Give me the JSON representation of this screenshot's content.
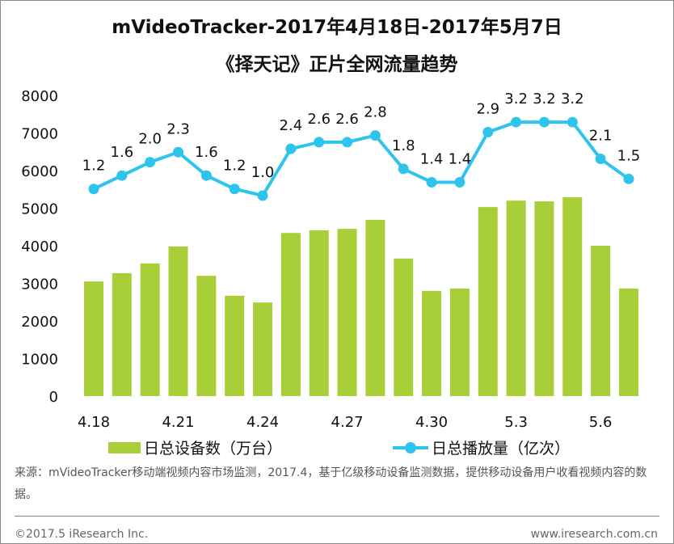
{
  "title_line1": "mVideoTracker-2017年4月18日-2017年5月7日",
  "title_line2": "《择天记》正片全网流量趋势",
  "chart_data": {
    "type": "bar+line",
    "categories": [
      "4.18",
      "",
      "",
      "4.21",
      "",
      "",
      "4.24",
      "",
      "",
      "4.27",
      "",
      "",
      "4.30",
      "",
      "",
      "5.3",
      "",
      "",
      "5.6",
      ""
    ],
    "y_axis": {
      "range": [
        0,
        8000
      ],
      "ticks": [
        0,
        1000,
        2000,
        3000,
        4000,
        5000,
        6000,
        7000,
        8000
      ]
    },
    "secondary_axis_hidden": {
      "range": [
        -5,
        4
      ]
    },
    "grid": false,
    "legend_position": "bottom",
    "series": [
      {
        "name": "日总设备数（万台）",
        "type": "bar",
        "axis": "left",
        "color": "#A9CF38",
        "values": [
          3050,
          3270,
          3530,
          3980,
          3200,
          2670,
          2490,
          4340,
          4410,
          4450,
          4690,
          3660,
          2800,
          2860,
          5030,
          5200,
          5180,
          5290,
          4000,
          2860
        ]
      },
      {
        "name": "日总播放量（亿次）",
        "type": "line",
        "axis": "secondary",
        "color": "#2EC4EE",
        "values": [
          1.2,
          1.6,
          2.0,
          2.3,
          1.6,
          1.2,
          1.0,
          2.4,
          2.6,
          2.6,
          2.8,
          1.8,
          1.4,
          1.4,
          2.9,
          3.2,
          3.2,
          3.2,
          2.1,
          1.5
        ],
        "labels": [
          "1.2",
          "1.6",
          "2.0",
          "2.3",
          "1.6",
          "1.2",
          "1.0",
          "2.4",
          "2.6",
          "2.6",
          "2.8",
          "1.8",
          "1.4",
          "1.4",
          "2.9",
          "3.2",
          "3.2",
          "3.2",
          "2.1",
          "1.5"
        ]
      }
    ]
  },
  "note": "来源：mVideoTracker移动端视频内容市场监测，2017.4，基于亿级移动设备监测数据，提供移动设备用户收看视频内容的数据。",
  "copyright": "©2017.5 iResearch Inc.",
  "website": "www.iresearch.com.cn"
}
